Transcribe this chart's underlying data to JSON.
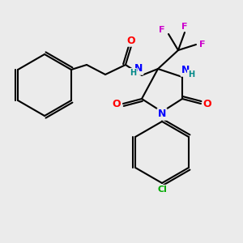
{
  "background_color": "#ebebeb",
  "bond_color": "#000000",
  "atom_colors": {
    "N": "#0000ff",
    "O": "#ff0000",
    "F": "#cc00cc",
    "Cl": "#00aa00",
    "H": "#008888",
    "C": "#000000"
  }
}
